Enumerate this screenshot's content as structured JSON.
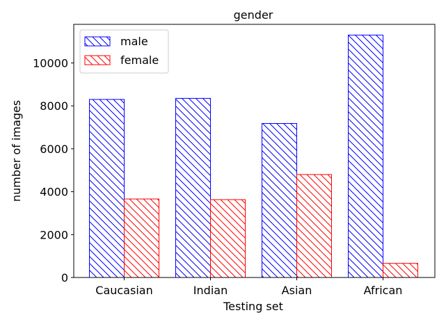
{
  "chart_data": {
    "type": "bar",
    "title": "gender",
    "xlabel": "Testing set",
    "ylabel": "number of images",
    "categories": [
      "Caucasian",
      "Indian",
      "Asian",
      "African"
    ],
    "series": [
      {
        "name": "male",
        "values": [
          8300,
          8350,
          7180,
          11300
        ],
        "color": "#0000ff",
        "hatch": "diagonal-down"
      },
      {
        "name": "female",
        "values": [
          3660,
          3630,
          4800,
          660
        ],
        "color": "#ff0000",
        "hatch": "diagonal-down"
      }
    ],
    "ylim": [
      0,
      11800
    ],
    "yticks": [
      0,
      2000,
      4000,
      6000,
      8000,
      10000
    ],
    "grid": false,
    "legend_position": "top-left"
  }
}
